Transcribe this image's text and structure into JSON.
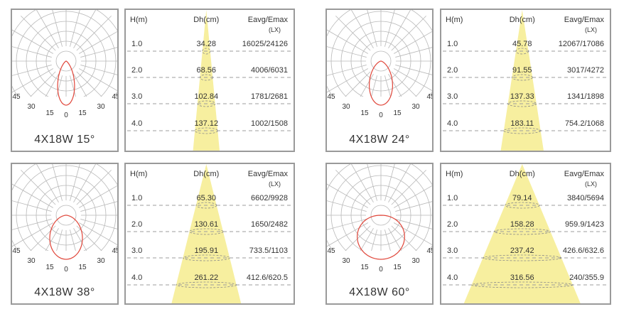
{
  "headers": {
    "height": "H(m)",
    "diameter": "Dh(cm)",
    "illuminance": "Eavg/Emax",
    "illuminance_unit": "(LX)"
  },
  "polar_labels": [
    "45",
    "30",
    "15",
    "0",
    "15",
    "30",
    "45"
  ],
  "colors": {
    "cone": "#f7ef9f",
    "curve": "#e0463a",
    "grid": "#b8b8b8",
    "border": "#9a9a9a",
    "dashes": "#9c9c9c"
  },
  "products": [
    {
      "caption": "4X18W 15°",
      "beam_angle": 15,
      "rows": [
        {
          "h": "1.0",
          "dh": "34.28",
          "e": "16025/24126"
        },
        {
          "h": "2.0",
          "dh": "68.56",
          "e": "4006/6031"
        },
        {
          "h": "3.0",
          "dh": "102.84",
          "e": "1781/2681"
        },
        {
          "h": "4.0",
          "dh": "137.12",
          "e": "1002/1508"
        }
      ]
    },
    {
      "caption": "4X18W 24°",
      "beam_angle": 24,
      "rows": [
        {
          "h": "1.0",
          "dh": "45.78",
          "e": "12067/17086"
        },
        {
          "h": "2.0",
          "dh": "91.55",
          "e": "3017/4272"
        },
        {
          "h": "3.0",
          "dh": "137.33",
          "e": "1341/1898"
        },
        {
          "h": "4.0",
          "dh": "183.11",
          "e": "754.2/1068"
        }
      ]
    },
    {
      "caption": "4X18W 38°",
      "beam_angle": 38,
      "rows": [
        {
          "h": "1.0",
          "dh": "65.30",
          "e": "6602/9928"
        },
        {
          "h": "2.0",
          "dh": "130.61",
          "e": "1650/2482"
        },
        {
          "h": "3.0",
          "dh": "195.91",
          "e": "733.5/1103"
        },
        {
          "h": "4.0",
          "dh": "261.22",
          "e": "412.6/620.5"
        }
      ]
    },
    {
      "caption": "4X18W 60°",
      "beam_angle": 60,
      "rows": [
        {
          "h": "1.0",
          "dh": "79.14",
          "e": "3840/5694"
        },
        {
          "h": "2.0",
          "dh": "158.28",
          "e": "959.9/1423"
        },
        {
          "h": "3.0",
          "dh": "237.42",
          "e": "426.6/632.6"
        },
        {
          "h": "4.0",
          "dh": "316.56",
          "e": "240/355.9"
        }
      ]
    }
  ]
}
